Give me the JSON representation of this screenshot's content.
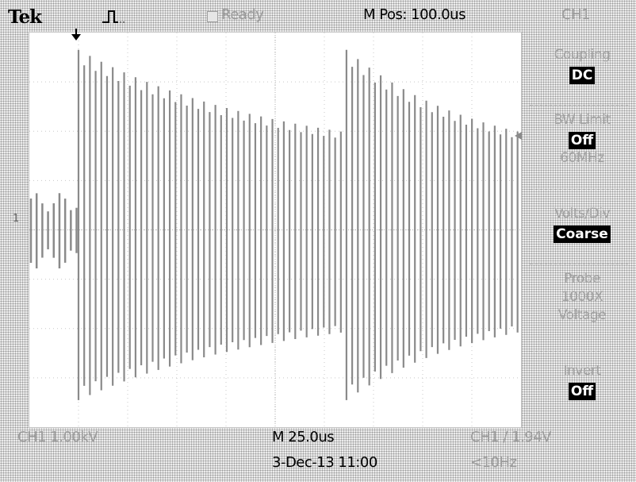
{
  "header": {
    "brand": "Tek",
    "trigger_icon": "rising-edge-trigger-icon",
    "acq_icon": "acquisition-status-icon",
    "status": "Ready",
    "mpos": "M Pos: 100.0us",
    "channel": "CH1"
  },
  "menu": {
    "coupling": {
      "label": "Coupling",
      "value": "DC"
    },
    "bw_limit": {
      "label": "BW Limit",
      "value": "Off",
      "sub": "60MHz"
    },
    "volts_div": {
      "label": "Volts/Div",
      "value": "Coarse"
    },
    "probe": {
      "label": "Probe",
      "value": "1000X",
      "sub": "Voltage"
    },
    "invert": {
      "label": "Invert",
      "value": "Off"
    }
  },
  "footer": {
    "ch1_scale": "CH1  1.00kV",
    "timebase": "M 25.0us",
    "trigger": "CH1 ∕ 1.94V",
    "datetime": "3-Dec-13 11:00",
    "frequency": "<10Hz"
  },
  "markers": {
    "ground": "1",
    "trigger_position_icon": "trigger-position-arrow-icon",
    "trigger_level_icon": "trigger-level-arrow-icon"
  },
  "colors": {
    "trace": "#8a8a8a",
    "screen": "#ffffff",
    "grid": "#c8c8c8",
    "label_faint": "#a2a2a2",
    "value_bg": "#000000"
  },
  "chart_data": {
    "type": "line",
    "title": "",
    "xlabel": "",
    "ylabel": "",
    "x_divisions": 10,
    "y_divisions": 8,
    "timebase_per_div": "25.0us",
    "volts_per_div": "1.00kV",
    "series": [
      {
        "description": "Damped oscillation bursts; two bursts in record, decaying envelope",
        "burst_start_div": [
          1.0,
          6.45
        ],
        "burst_end_div": [
          6.45,
          10.0
        ],
        "envelope_initial_upper_div": 3.65,
        "envelope_initial_lower_div": -3.45,
        "envelope_final_upper_div": 1.35,
        "envelope_final_lower_div": -1.55,
        "pre_trigger_amplitude_div": 0.75,
        "oscillation_period_div": 0.116
      }
    ]
  }
}
